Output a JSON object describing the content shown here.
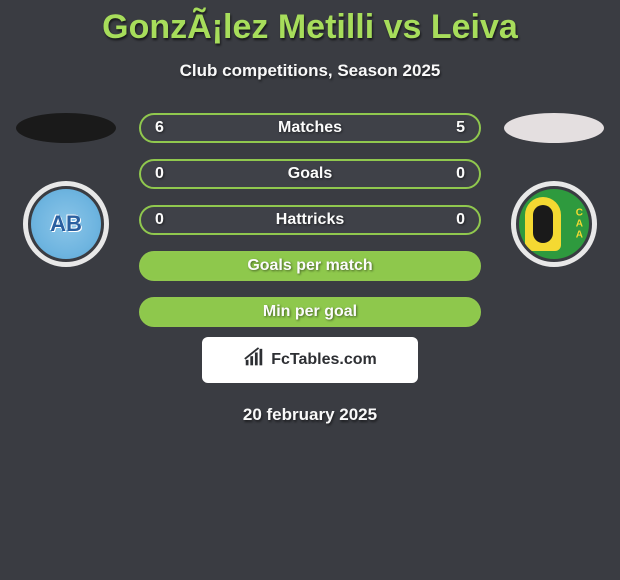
{
  "title": "GonzÃ¡lez Metilli vs Leiva",
  "subtitle": "Club competitions, Season 2025",
  "date": "20 february 2025",
  "brand": "FcTables.com",
  "left": {
    "oval_color": "#1a1a1a",
    "club_short": "AB",
    "logo_bg": "#6fb5e0",
    "logo_text_color": "#2a5fa0"
  },
  "right": {
    "oval_color": "#e4dfe0",
    "club_short": "CAA",
    "logo_bg": "#2e9a3e"
  },
  "rows": [
    {
      "left": "6",
      "label": "Matches",
      "right": "5",
      "style": "dark"
    },
    {
      "left": "0",
      "label": "Goals",
      "right": "0",
      "style": "dark"
    },
    {
      "left": "0",
      "label": "Hattricks",
      "right": "0",
      "style": "dark"
    },
    {
      "left": "",
      "label": "Goals per match",
      "right": "",
      "style": "green"
    },
    {
      "left": "",
      "label": "Min per goal",
      "right": "",
      "style": "green"
    }
  ],
  "colors": {
    "background": "#3a3c42",
    "accent": "#a7dd5b",
    "pill_border": "#90c84e",
    "pill_dark_bg": "#3f4148",
    "pill_green_bg": "#8ec84c",
    "text": "#f9f9f9",
    "brand_box_bg": "#ffffff",
    "brand_text": "#2d2f33"
  },
  "typography": {
    "title_fontsize": 34,
    "subtitle_fontsize": 17,
    "pill_fontsize": 16,
    "date_fontsize": 17
  }
}
